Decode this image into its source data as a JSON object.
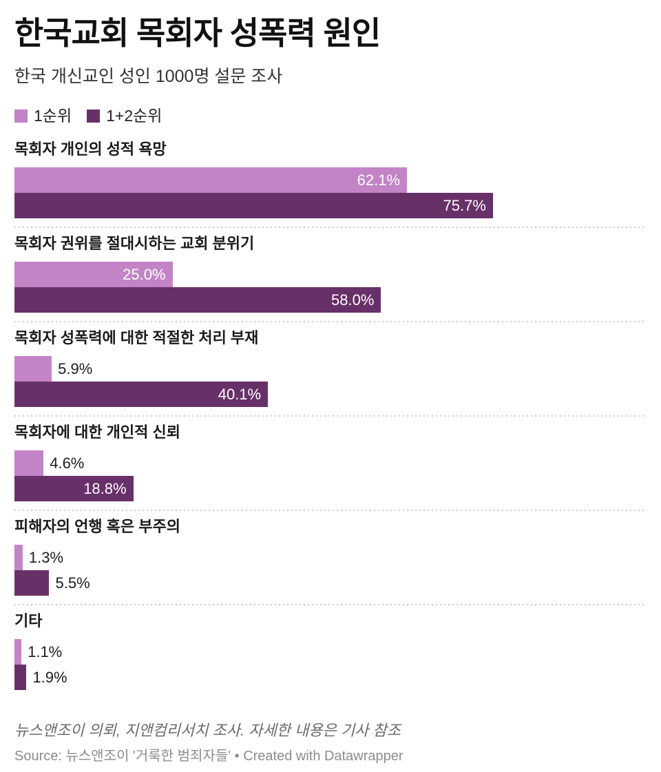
{
  "header": {
    "title": "한국교회 목회자 성폭력 원인",
    "subtitle": "한국 개신교인 성인 1000명 설문 조사"
  },
  "legend": {
    "items": [
      {
        "label": "1순위",
        "color": "#c284c6"
      },
      {
        "label": "1+2순위",
        "color": "#683069"
      }
    ]
  },
  "chart_data": {
    "type": "bar",
    "orientation": "horizontal",
    "unit": "%",
    "xlim": [
      0,
      100
    ],
    "grid": false,
    "legend_position": "top",
    "title": "한국교회 목회자 성폭력 원인",
    "subtitle": "한국 개신교인 성인 1000명 설문 조사",
    "categories": [
      "목회자 개인의 성적 욕망",
      "목회자 권위를 절대시하는 교회 분위기",
      "목회자 성폭력에 대한 적절한 처리 부재",
      "목회자에 대한 개인적 신뢰",
      "피해자의 언행 혹은 부주의",
      "기타"
    ],
    "series": [
      {
        "name": "1순위",
        "color": "#c284c6",
        "values": [
          62.1,
          25.0,
          5.9,
          4.6,
          1.3,
          1.1
        ],
        "labels": [
          "62.1%",
          "25.0%",
          "5.9%",
          "4.6%",
          "1.3%",
          "1.1%"
        ]
      },
      {
        "name": "1+2순위",
        "color": "#683069",
        "values": [
          75.7,
          58.0,
          40.1,
          18.8,
          5.5,
          1.9
        ],
        "labels": [
          "75.7%",
          "58.0%",
          "40.1%",
          "18.8%",
          "5.5%",
          "1.9%"
        ]
      }
    ]
  },
  "footer": {
    "note": "뉴스앤조이 의뢰, 지앤컴리서치 조사. 자세한 내용은 기사 참조",
    "source": "Source: 뉴스앤조이 '거룩한 범죄자들'",
    "separator": "•",
    "attribution": "Created with Datawrapper"
  }
}
